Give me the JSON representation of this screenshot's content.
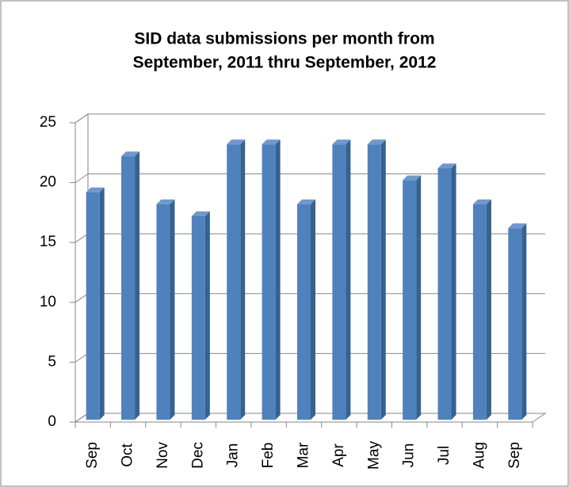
{
  "chart_data": {
    "type": "bar",
    "title": [
      "SID data submissions per month from",
      "September, 2011 thru September, 2012"
    ],
    "categories": [
      "Sep",
      "Oct",
      "Nov",
      "Dec",
      "Jan",
      "Feb",
      "Mar",
      "Apr",
      "May",
      "Jun",
      "Jul",
      "Aug",
      "Sep"
    ],
    "values": [
      19,
      22,
      18,
      17,
      23,
      23,
      18,
      23,
      23,
      20,
      21,
      18,
      16
    ],
    "color": "#4f81bd",
    "ylim": [
      0,
      25
    ],
    "yticks": [
      0,
      5,
      10,
      15,
      20,
      25
    ],
    "grid": true
  }
}
